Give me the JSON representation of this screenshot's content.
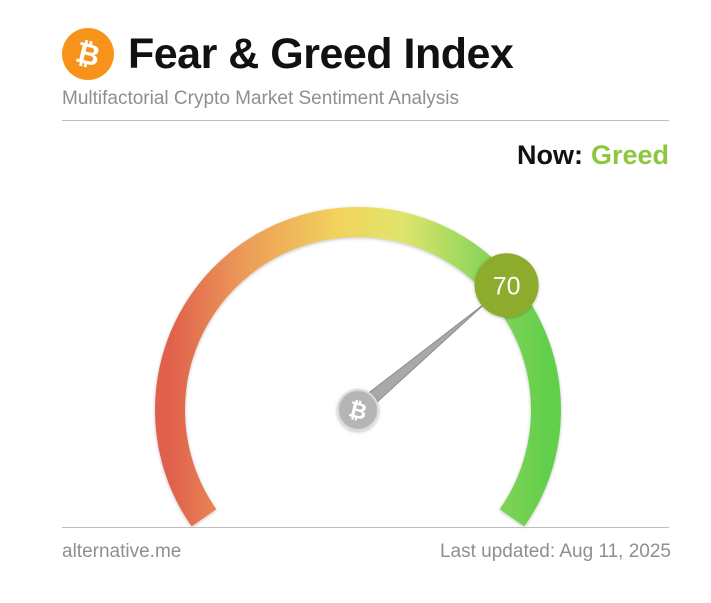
{
  "header": {
    "logo_icon": "bitcoin-icon",
    "logo_symbol": "₿",
    "title": "Fear & Greed Index",
    "subtitle": "Multifactorial Crypto Market Sentiment Analysis"
  },
  "now": {
    "label": "Now:",
    "classification": "Greed",
    "classification_color": "#8dc63f"
  },
  "gauge": {
    "value": 70,
    "min": 0,
    "max": 100,
    "value_badge_color": "#8dac2e",
    "needle_hub_icon": "bitcoin-icon",
    "needle_hub_symbol": "₿",
    "scale_colors": [
      "#e0604c",
      "#ec9c58",
      "#f2d35c",
      "#dfe56c",
      "#8fd65b",
      "#62cf4c"
    ]
  },
  "footer": {
    "source": "alternative.me",
    "last_updated": "Last updated: Aug 11, 2025"
  }
}
